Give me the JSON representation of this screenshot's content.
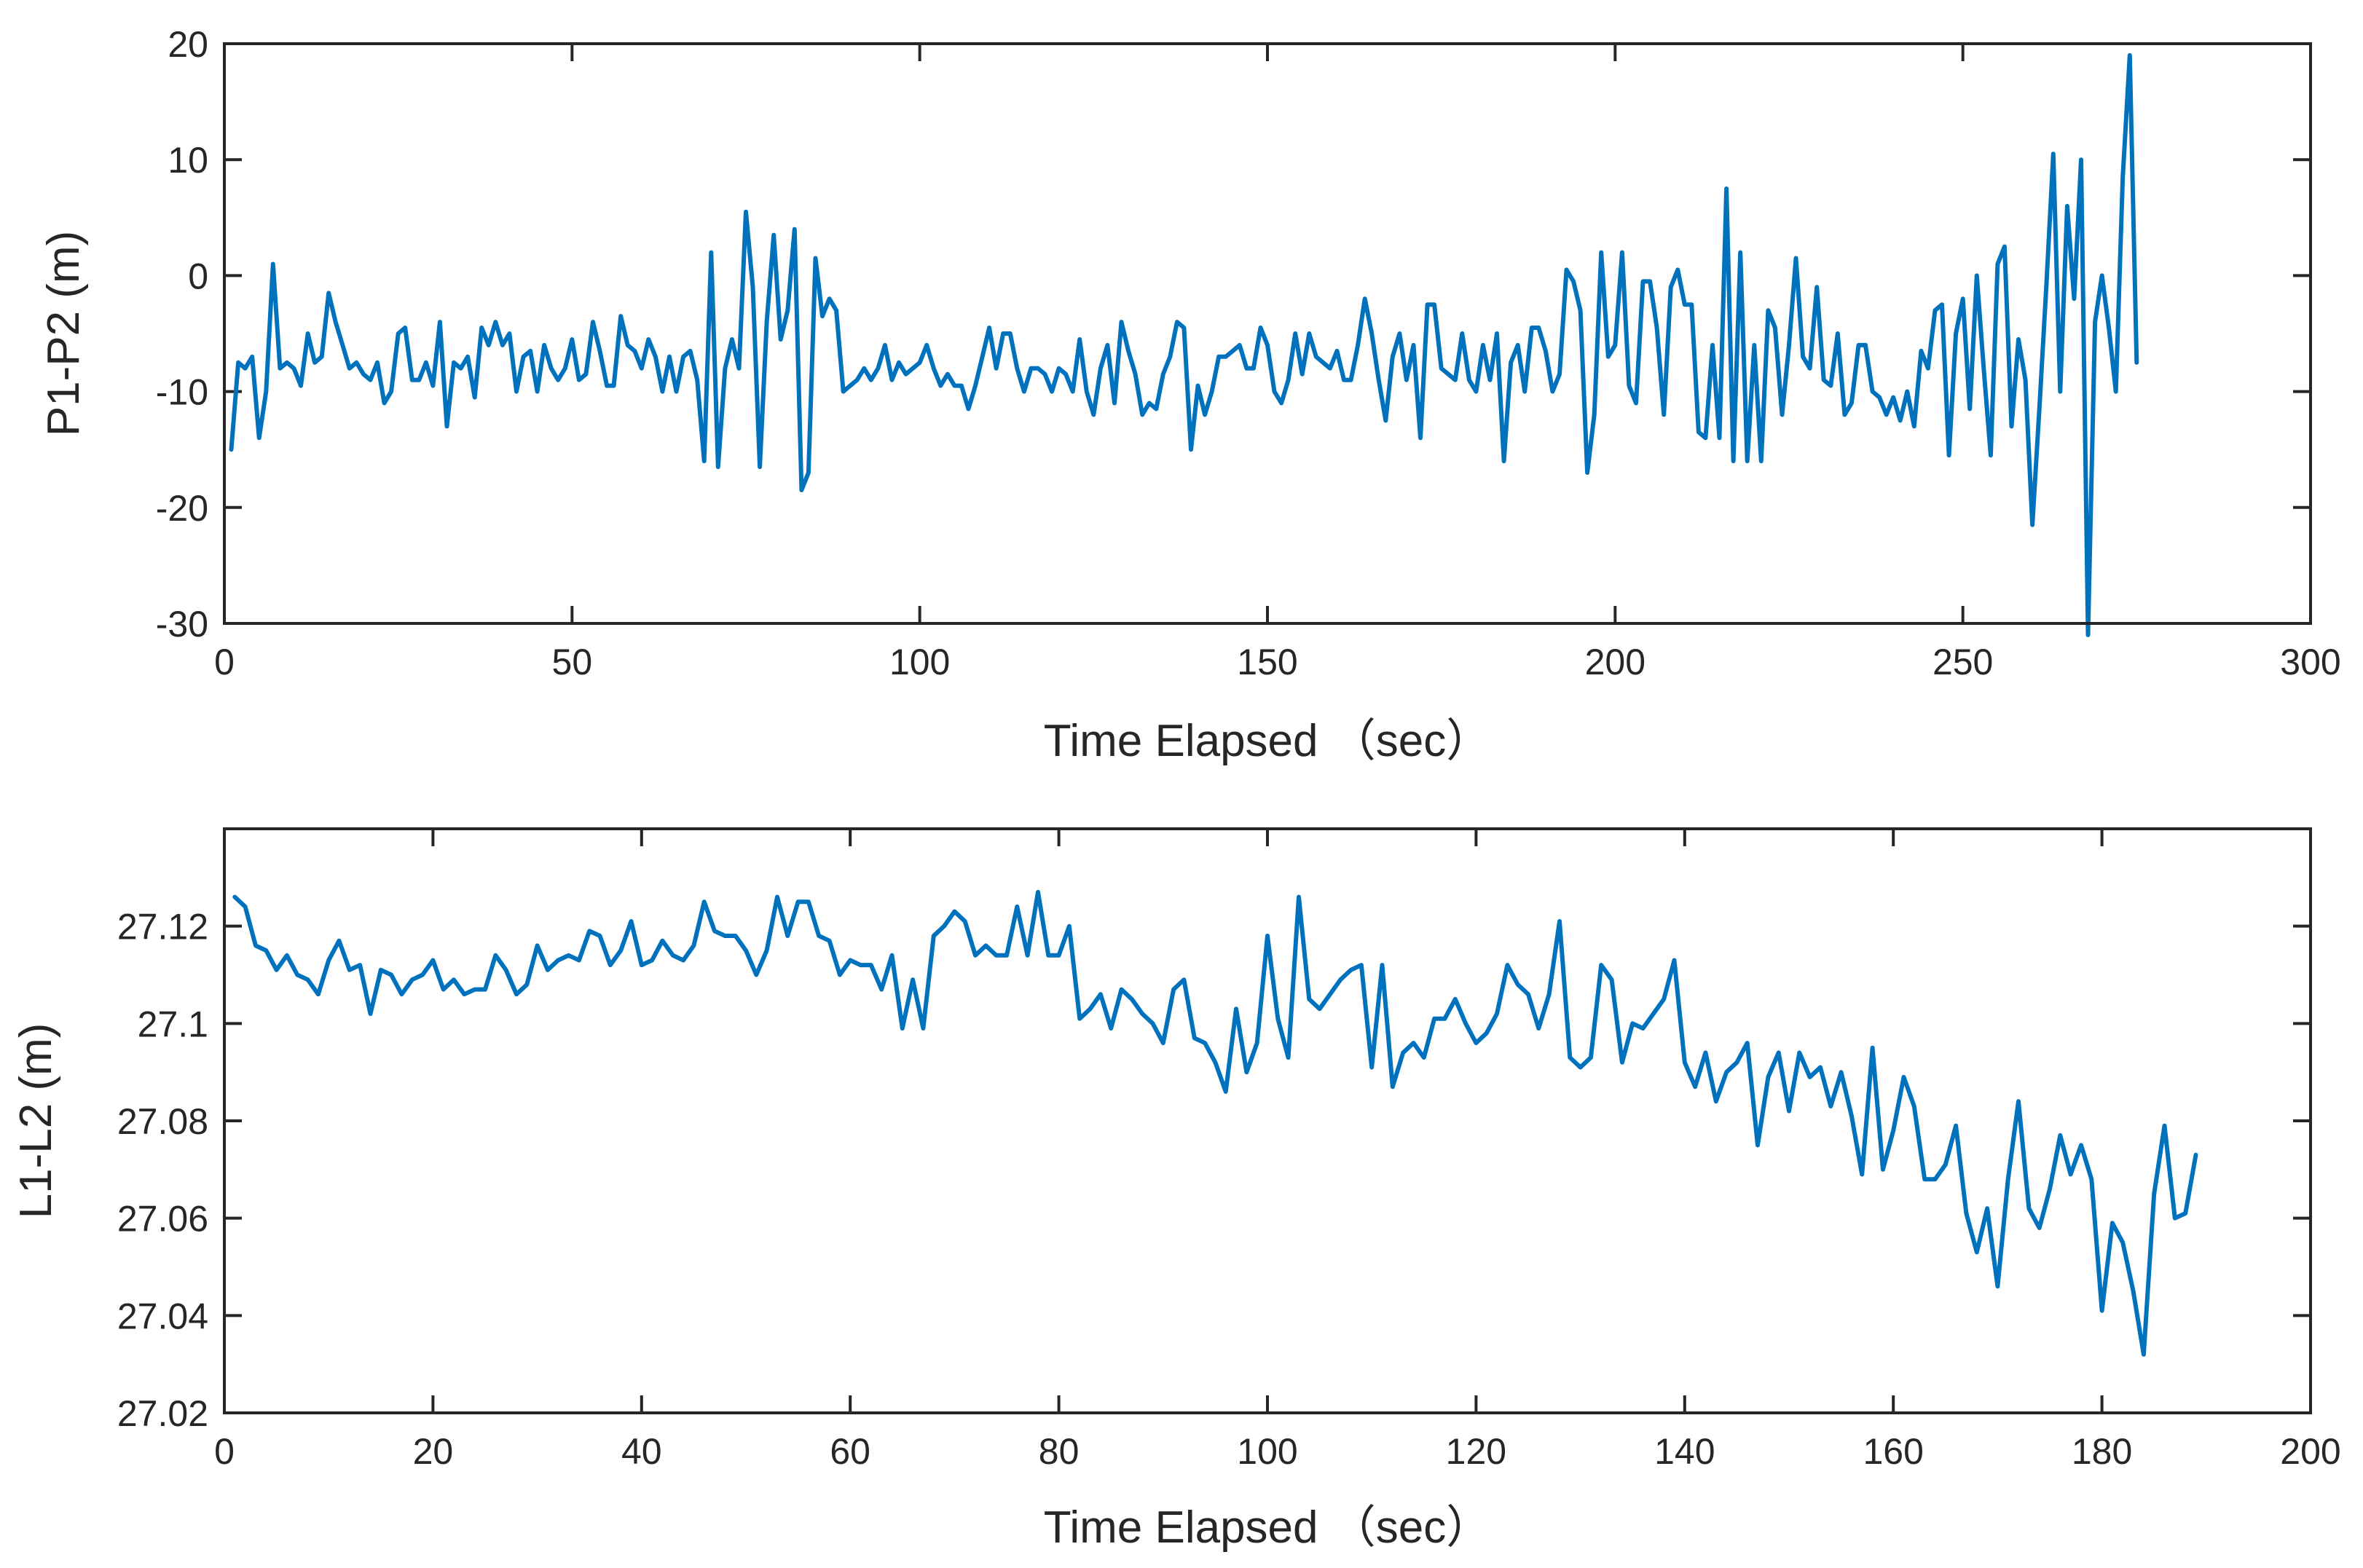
{
  "chart_data": [
    {
      "type": "line",
      "title": "",
      "xlabel": "Time Elapsed （sec）",
      "ylabel": "P1-P2 (m)",
      "xlim": [
        0,
        300
      ],
      "ylim": [
        -30,
        20
      ],
      "xticks": [
        0,
        50,
        100,
        150,
        200,
        250,
        300
      ],
      "yticks": [
        -30,
        -20,
        -10,
        0,
        10,
        20
      ],
      "xtick_labels": [
        "0",
        "50",
        "100",
        "150",
        "200",
        "250",
        "300"
      ],
      "ytick_labels": [
        "-30",
        "-20",
        "-10",
        "0",
        "10",
        "20"
      ],
      "grid": false,
      "series": [
        {
          "name": "P1-P2",
          "color": "#0072BD",
          "x_start": 1,
          "x_step": 1,
          "values": [
            -15,
            -7.5,
            -8,
            -7,
            -14,
            -10,
            1,
            -8,
            -7.5,
            -8,
            -9.5,
            -5,
            -7.5,
            -7,
            -1.5,
            -4,
            -6,
            -8,
            -7.5,
            -8.5,
            -9,
            -7.5,
            -11,
            -10,
            -5,
            -4.5,
            -9,
            -9,
            -7.5,
            -9.5,
            -4,
            -13,
            -7.5,
            -8,
            -7,
            -10.5,
            -4.5,
            -6,
            -4,
            -6,
            -5,
            -10,
            -7,
            -6.5,
            -10,
            -6,
            -8,
            -9,
            -8,
            -5.5,
            -9,
            -8.5,
            -4,
            -6.5,
            -9.5,
            -9.5,
            -3.5,
            -6,
            -6.5,
            -8,
            -5.5,
            -7,
            -10,
            -7,
            -10,
            -7,
            -6.5,
            -9,
            -16,
            2,
            -16.5,
            -8,
            -5.5,
            -8,
            5.5,
            -1,
            -16.5,
            -4,
            3.5,
            -5.5,
            -3,
            4,
            -18.5,
            -17,
            1.5,
            -3.5,
            -2,
            -3,
            -10,
            -9.5,
            -9,
            -8,
            -9,
            -8,
            -6,
            -9,
            -7.5,
            -8.5,
            -8,
            -7.5,
            -6,
            -8,
            -9.5,
            -8.5,
            -9.5,
            -9.5,
            -11.5,
            -9.5,
            -7,
            -4.5,
            -8,
            -5,
            -5,
            -8,
            -10,
            -8,
            -8,
            -8.5,
            -10,
            -8,
            -8.5,
            -10,
            -5.5,
            -10,
            -12,
            -8,
            -6,
            -11,
            -4,
            -6.5,
            -8.5,
            -12,
            -11,
            -11.5,
            -8.5,
            -7,
            -4,
            -4.5,
            -15,
            -9.5,
            -12,
            -10,
            -7,
            -7,
            -6.5,
            -6,
            -8,
            -8,
            -4.5,
            -6,
            -10,
            -11,
            -9,
            -5,
            -8.5,
            -5,
            -7,
            -7.5,
            -8,
            -6.5,
            -9,
            -9,
            -6,
            -2,
            -5,
            -9,
            -12.5,
            -7,
            -5,
            -9,
            -6,
            -14,
            -2.5,
            -2.5,
            -8,
            -8.5,
            -9,
            -5,
            -9,
            -10,
            -6,
            -9,
            -5,
            -16,
            -7.5,
            -6,
            -10,
            -4.5,
            -4.5,
            -6.5,
            -10,
            -8.5,
            0.5,
            -0.5,
            -3,
            -17,
            -12,
            2,
            -7,
            -6,
            2,
            -9.5,
            -11,
            -0.5,
            -0.5,
            -4.5,
            -12,
            -1,
            0.5,
            -2.5,
            -2.5,
            -13.5,
            -14,
            -6,
            -14,
            7.5,
            -16,
            2,
            -16,
            -6,
            -16,
            -3,
            -4.5,
            -12,
            -6,
            1.5,
            -7,
            -8,
            -1,
            -9,
            -9.5,
            -5,
            -12,
            -11,
            -6,
            -6,
            -10,
            -10.5,
            -12,
            -10.5,
            -12.5,
            -10,
            -13,
            -6.5,
            -8,
            -3,
            -2.5,
            -15.5,
            -5,
            -2,
            -11.5,
            0,
            -8,
            -15.5,
            1,
            2.5,
            -13,
            -5.5,
            -9,
            -21.5,
            -11.5,
            -1,
            10.5,
            -10,
            6,
            -2,
            10,
            -31,
            -4,
            0,
            -4.5,
            -10,
            8.5,
            19,
            -7.5
          ]
        }
      ]
    },
    {
      "type": "line",
      "title": "",
      "xlabel": "Time Elapsed （sec）",
      "ylabel": "L1-L2 (m)",
      "xlim": [
        0,
        200
      ],
      "ylim": [
        27.02,
        27.14
      ],
      "xticks": [
        0,
        20,
        40,
        60,
        80,
        100,
        120,
        140,
        160,
        180,
        200
      ],
      "yticks": [
        27.02,
        27.04,
        27.06,
        27.08,
        27.1,
        27.12
      ],
      "xtick_labels": [
        "0",
        "20",
        "40",
        "60",
        "80",
        "100",
        "120",
        "140",
        "160",
        "180",
        "200"
      ],
      "ytick_labels": [
        "27.02",
        "27.04",
        "27.06",
        "27.08",
        "27.1",
        "27.12"
      ],
      "grid": false,
      "series": [
        {
          "name": "L1-L2",
          "color": "#0072BD",
          "x_start": 1,
          "x_step": 1,
          "values": [
            27.126,
            27.124,
            27.116,
            27.115,
            27.111,
            27.114,
            27.11,
            27.109,
            27.106,
            27.113,
            27.117,
            27.111,
            27.112,
            27.102,
            27.111,
            27.11,
            27.106,
            27.109,
            27.11,
            27.113,
            27.107,
            27.109,
            27.106,
            27.107,
            27.107,
            27.114,
            27.111,
            27.106,
            27.108,
            27.116,
            27.111,
            27.113,
            27.114,
            27.113,
            27.119,
            27.118,
            27.112,
            27.115,
            27.121,
            27.112,
            27.113,
            27.117,
            27.114,
            27.113,
            27.116,
            27.125,
            27.119,
            27.118,
            27.118,
            27.115,
            27.11,
            27.115,
            27.126,
            27.118,
            27.125,
            27.125,
            27.118,
            27.117,
            27.11,
            27.113,
            27.112,
            27.112,
            27.107,
            27.114,
            27.099,
            27.109,
            27.099,
            27.118,
            27.12,
            27.123,
            27.121,
            27.114,
            27.116,
            27.114,
            27.114,
            27.124,
            27.114,
            27.127,
            27.114,
            27.114,
            27.12,
            27.101,
            27.103,
            27.106,
            27.099,
            27.107,
            27.105,
            27.102,
            27.1,
            27.096,
            27.107,
            27.109,
            27.097,
            27.096,
            27.092,
            27.086,
            27.103,
            27.09,
            27.096,
            27.118,
            27.101,
            27.093,
            27.126,
            27.105,
            27.103,
            27.106,
            27.109,
            27.111,
            27.112,
            27.091,
            27.112,
            27.087,
            27.094,
            27.096,
            27.093,
            27.101,
            27.101,
            27.105,
            27.1,
            27.096,
            27.098,
            27.102,
            27.112,
            27.108,
            27.106,
            27.099,
            27.106,
            27.121,
            27.093,
            27.091,
            27.093,
            27.112,
            27.109,
            27.092,
            27.1,
            27.099,
            27.102,
            27.105,
            27.113,
            27.092,
            27.087,
            27.094,
            27.084,
            27.09,
            27.092,
            27.096,
            27.075,
            27.089,
            27.094,
            27.082,
            27.094,
            27.089,
            27.091,
            27.083,
            27.09,
            27.081,
            27.069,
            27.095,
            27.07,
            27.078,
            27.089,
            27.083,
            27.068,
            27.068,
            27.071,
            27.079,
            27.061,
            27.053,
            27.062,
            27.046,
            27.068,
            27.084,
            27.062,
            27.058,
            27.066,
            27.077,
            27.069,
            27.075,
            27.068,
            27.041,
            27.059,
            27.055,
            27.045,
            27.032,
            27.065,
            27.079,
            27.06,
            27.061,
            27.073
          ]
        }
      ]
    }
  ]
}
